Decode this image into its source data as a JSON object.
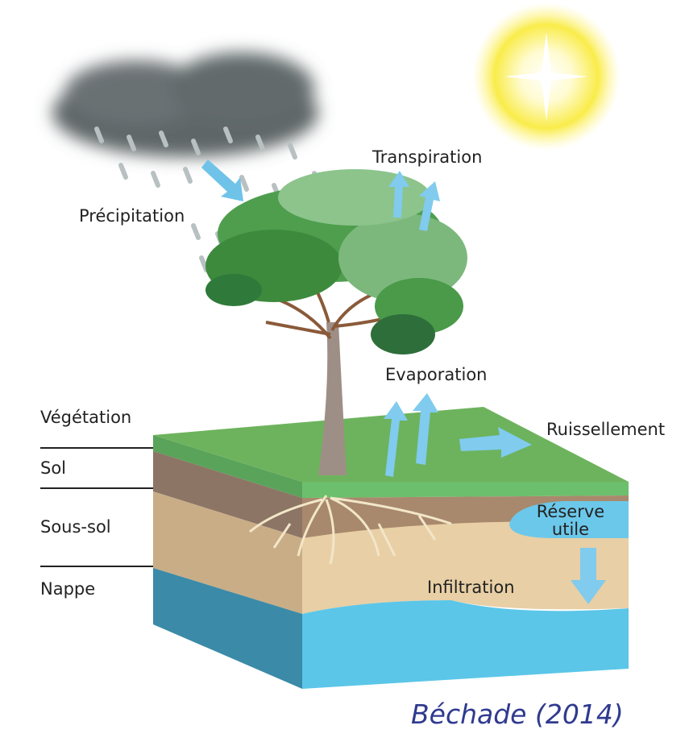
{
  "labels": {
    "precipitation": "Précipitation",
    "transpiration": "Transpiration",
    "evaporation": "Evaporation",
    "ruissellement": "Ruissellement",
    "reserve_utile": [
      "Réserve",
      "utile"
    ],
    "infiltration": "Infiltration"
  },
  "layers": [
    "Végétation",
    "Sol",
    "Sous-sol",
    "Nappe"
  ],
  "caption": "Béchade (2014)"
}
